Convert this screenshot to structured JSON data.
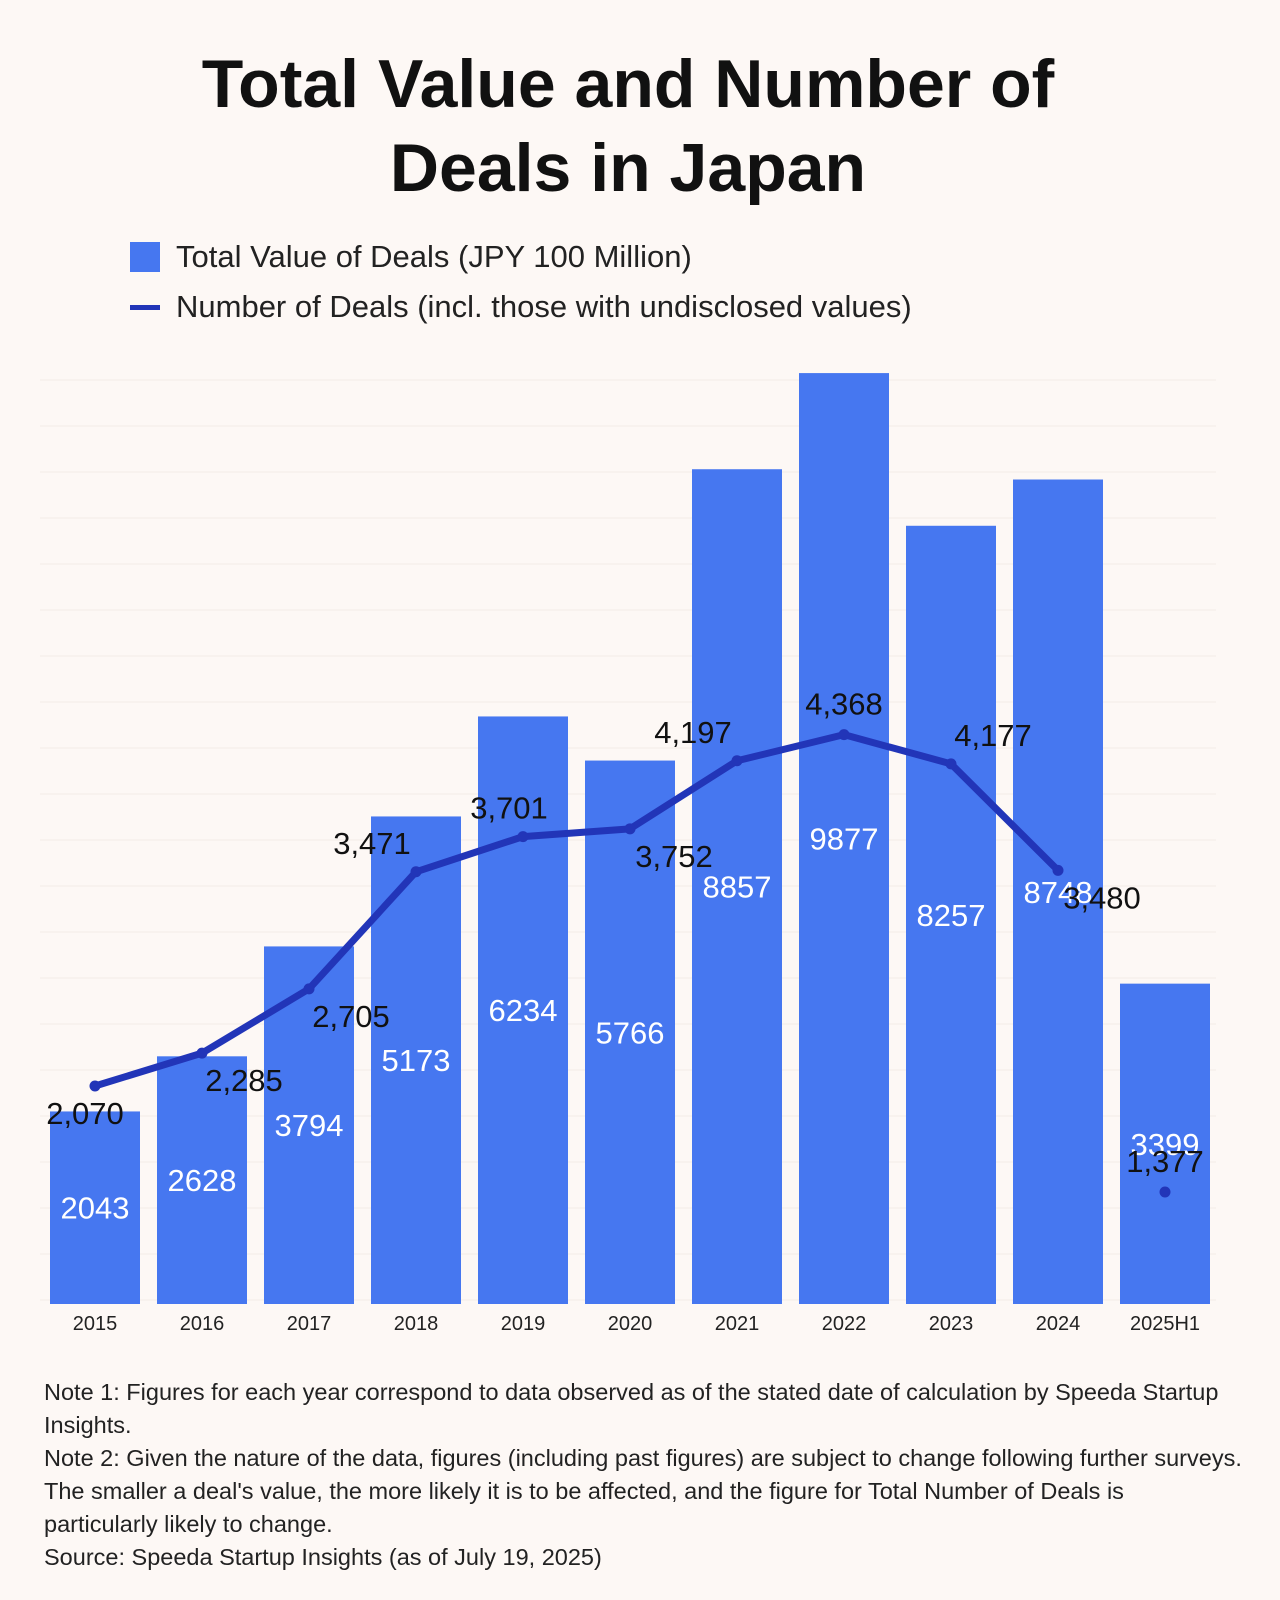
{
  "title_lines": [
    "Total Value and Number of",
    "Deals in Japan"
  ],
  "legend": {
    "bars_label": "Total Value of Deals (JPY 100 Million)",
    "line_label": "Number of Deals (incl. those with undisclosed values)"
  },
  "colors": {
    "bar": "#4677f0",
    "line": "#2235b8",
    "background": "#fdf8f5"
  },
  "chart_data": {
    "type": "bar",
    "categories": [
      "2015",
      "2016",
      "2017",
      "2018",
      "2019",
      "2020",
      "2021",
      "2022",
      "2023",
      "2024",
      "2025H1"
    ],
    "series": [
      {
        "name": "Total Value of Deals (JPY 100 Million)",
        "type": "bar",
        "values": [
          2043,
          2628,
          3794,
          5173,
          6234,
          5766,
          8857,
          9877,
          8257,
          8748,
          3399
        ],
        "labels": [
          "2043",
          "2628",
          "3794",
          "5173",
          "6234",
          "5766",
          "8857",
          "9877",
          "8257",
          "8748",
          "3399"
        ]
      },
      {
        "name": "Number of Deals (incl. those with undisclosed values)",
        "type": "line",
        "values": [
          2070,
          2285,
          2705,
          3471,
          3701,
          3752,
          4197,
          4368,
          4177,
          3480,
          1377
        ],
        "labels": [
          "2,070",
          "2,285",
          "2,705",
          "3,471",
          "3,701",
          "3,752",
          "4,197",
          "4,368",
          "4,177",
          "3,480",
          "1,377"
        ],
        "line_break_before": "2025H1"
      }
    ],
    "y_axis_shown": false,
    "grid": true
  },
  "notes": [
    "Note 1: Figures for each year correspond to data observed as of the stated date of calculation by Speeda Startup Insights.",
    "Note 2: Given the nature of the data, figures (including past figures) are subject to change following further surveys. The smaller a deal's value, the more likely it is to be affected, and the figure for Total Number of Deals is particularly likely to change.",
    "Source: Speeda Startup Insights (as of July 19, 2025)"
  ]
}
